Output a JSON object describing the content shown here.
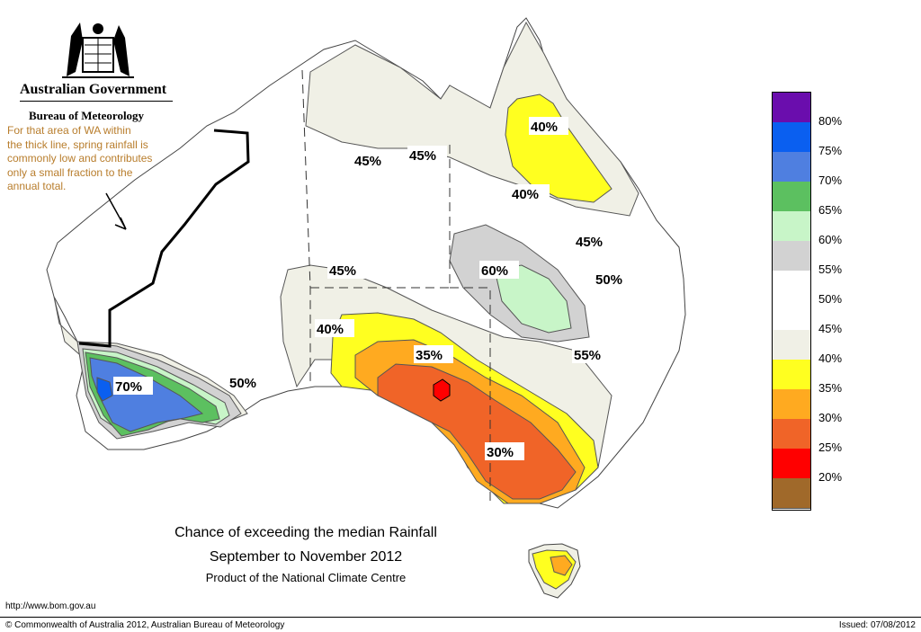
{
  "header": {
    "agency_line1": "Australian Government",
    "agency_line2": "Bureau of Meteorology",
    "note_lines": [
      "For that area of WA within",
      "the thick line, spring rainfall is",
      "commonly low and contributes",
      "only a small fraction to the",
      "annual total."
    ]
  },
  "titles": {
    "line1": "Chance of exceeding the median Rainfall",
    "line2": "September to November 2012",
    "line3": "Product of the National Climate Centre"
  },
  "footer": {
    "url": "http://www.bom.gov.au",
    "copyright": "© Commonwealth of Australia 2012, Australian Bureau of Meteorology",
    "issued": "Issued: 07/08/2012"
  },
  "legend": [
    {
      "label": "80%",
      "color": "#6a0dad"
    },
    {
      "label": "75%",
      "color": "#0a5ff0"
    },
    {
      "label": "70%",
      "color": "#4f7fe0"
    },
    {
      "label": "65%",
      "color": "#5cc060"
    },
    {
      "label": "60%",
      "color": "#c8f5c8"
    },
    {
      "label": "55%",
      "color": "#d2d2d2"
    },
    {
      "label": "50%",
      "color": "#ffffff"
    },
    {
      "label": "45%",
      "color": "#ffffff"
    },
    {
      "label": "40%",
      "color": "#f0f0e6"
    },
    {
      "label": "35%",
      "color": "#ffff20"
    },
    {
      "label": "30%",
      "color": "#ffaa20"
    },
    {
      "label": "25%",
      "color": "#f06428"
    },
    {
      "label": "20%",
      "color": "#ff0000"
    },
    {
      "label": "",
      "color": "#a0692a"
    }
  ],
  "map_labels": [
    "40%",
    "45%",
    "45%",
    "40%",
    "45%",
    "45%",
    "60%",
    "50%",
    "40%",
    "35%",
    "55%",
    "70%",
    "50%",
    "30%"
  ]
}
